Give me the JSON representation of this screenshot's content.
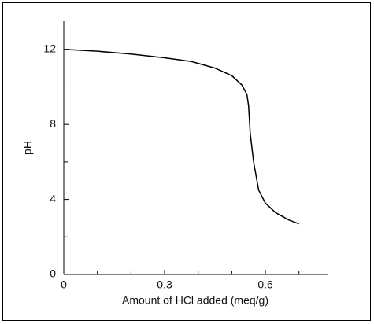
{
  "chart_data": {
    "type": "line",
    "x_label": "Amount of HCl added (meq/g)",
    "y_label": "pH",
    "x": [
      0,
      0.1,
      0.2,
      0.3,
      0.38,
      0.45,
      0.5,
      0.53,
      0.545,
      0.55,
      0.555,
      0.565,
      0.58,
      0.6,
      0.63,
      0.67,
      0.7
    ],
    "series": [
      {
        "color": "#000000",
        "values": [
          12.0,
          11.9,
          11.75,
          11.55,
          11.35,
          11.0,
          10.6,
          10.1,
          9.6,
          9.0,
          7.5,
          6.0,
          4.5,
          3.8,
          3.3,
          2.9,
          2.7
        ]
      }
    ],
    "xlim": [
      0,
      0.785
    ],
    "ylim": [
      0,
      13.5
    ],
    "xticks": [
      0,
      0.3,
      0.6
    ],
    "yticks": [
      0,
      4,
      8,
      12
    ],
    "x_minor_ticks": [
      0.1,
      0.2,
      0.4,
      0.5,
      0.7
    ],
    "y_minor_ticks": [
      2,
      6,
      10
    ],
    "grid": false
  }
}
